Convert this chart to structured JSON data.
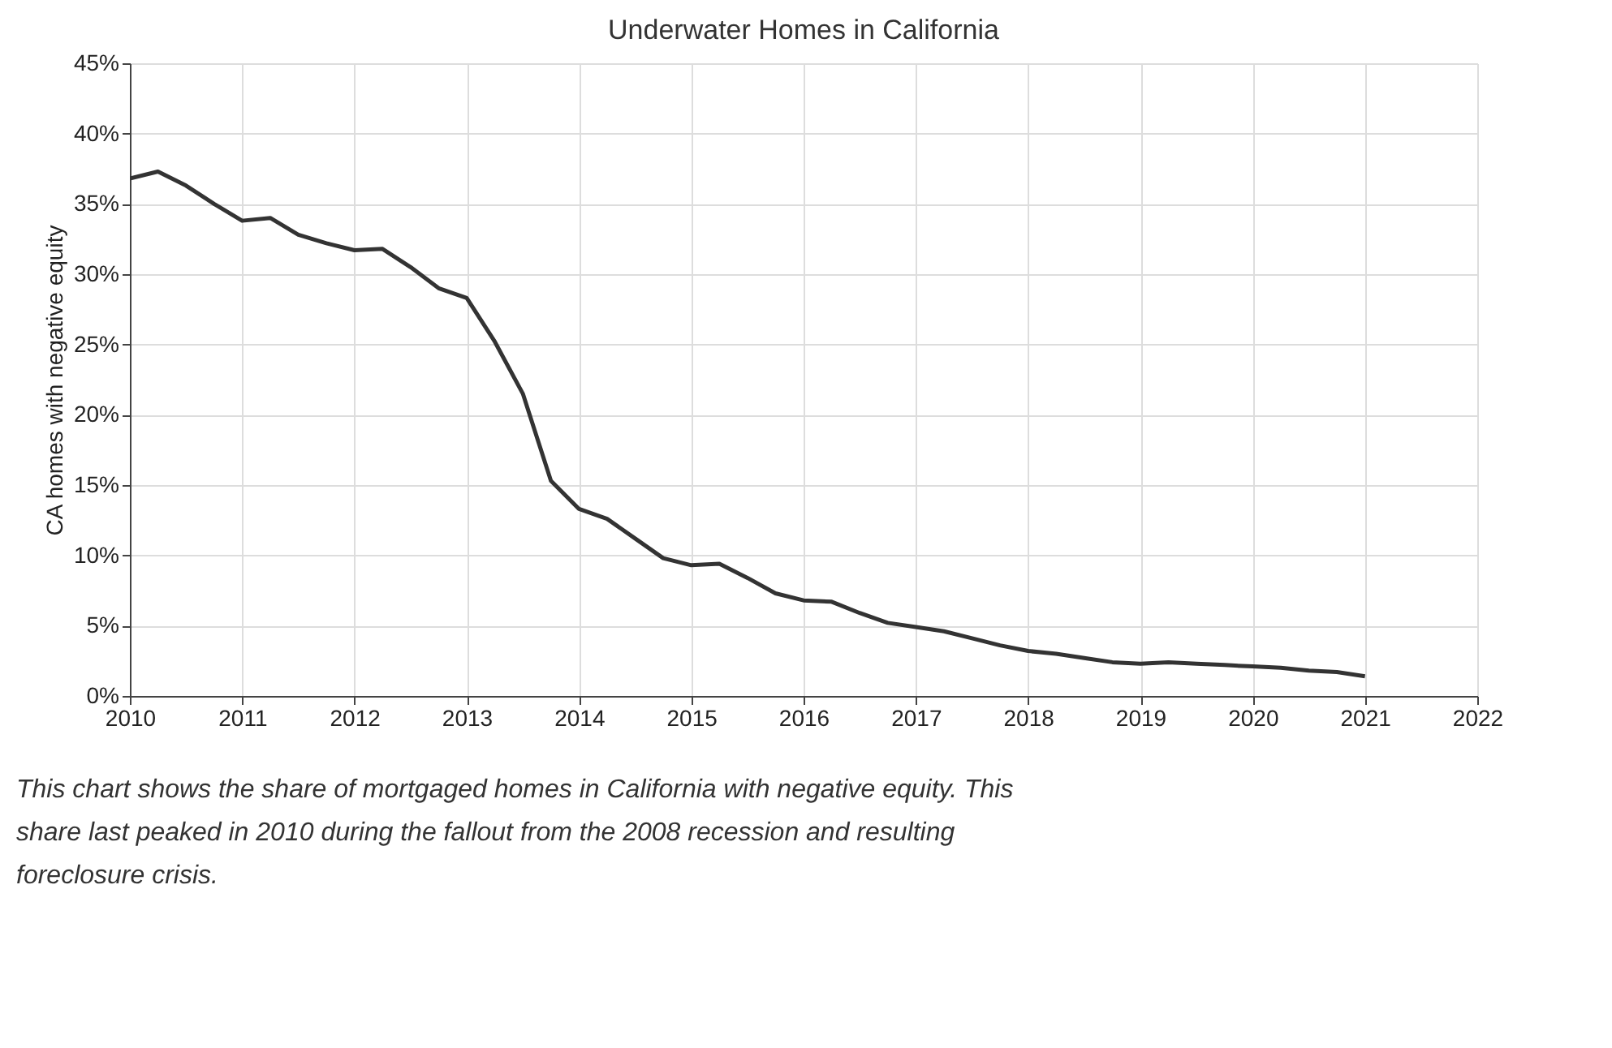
{
  "chart_data": {
    "type": "line",
    "title": "Underwater Homes in California",
    "ylabel": "CA homes with negative equity",
    "x": [
      2010,
      2010.25,
      2010.5,
      2010.75,
      2011,
      2011.25,
      2011.5,
      2011.75,
      2012,
      2012.25,
      2012.5,
      2012.75,
      2013,
      2013.25,
      2013.5,
      2013.75,
      2014,
      2014.25,
      2014.5,
      2014.75,
      2015,
      2015.25,
      2015.5,
      2015.75,
      2016,
      2016.25,
      2016.5,
      2016.75,
      2017,
      2017.25,
      2017.5,
      2017.75,
      2018,
      2018.25,
      2018.5,
      2018.75,
      2019,
      2019.25,
      2019.5,
      2019.75,
      2020,
      2020.25,
      2020.5,
      2020.75,
      2021
    ],
    "series": [
      {
        "color": "#333333",
        "values": [
          36.8,
          37.3,
          36.3,
          35.0,
          33.8,
          34.0,
          32.8,
          32.2,
          31.7,
          31.8,
          30.5,
          29.0,
          28.3,
          25.2,
          21.5,
          15.3,
          13.3,
          12.6,
          11.2,
          9.8,
          9.3,
          9.4,
          8.4,
          7.3,
          6.8,
          6.7,
          5.9,
          5.2,
          4.9,
          4.6,
          4.1,
          3.6,
          3.2,
          3.0,
          2.7,
          2.4,
          2.3,
          2.4,
          2.3,
          2.2,
          2.1,
          2.0,
          1.8,
          1.7,
          1.4
        ]
      }
    ],
    "xlim": [
      2010,
      2022
    ],
    "xticks": [
      2010,
      2011,
      2012,
      2013,
      2014,
      2015,
      2016,
      2017,
      2018,
      2019,
      2020,
      2021,
      2022
    ],
    "ylim": [
      0,
      45
    ],
    "yticks": [
      {
        "value": 0,
        "label": "0%"
      },
      {
        "value": 5,
        "label": "5%"
      },
      {
        "value": 10,
        "label": "10%"
      },
      {
        "value": 15,
        "label": "15%"
      },
      {
        "value": 20,
        "label": "20%"
      },
      {
        "value": 25,
        "label": "25%"
      },
      {
        "value": 30,
        "label": "30%"
      },
      {
        "value": 35,
        "label": "35%"
      },
      {
        "value": 40,
        "label": "40%"
      },
      {
        "value": 45,
        "label": "45%"
      }
    ],
    "grid": true,
    "marker": "none",
    "line_style": "solid",
    "annotations": [
      "This chart shows the share of mortgaged homes in California with negative equity. This share last peaked in 2010 during the fallout from the 2008 recession and resulting foreclosure crisis."
    ]
  }
}
